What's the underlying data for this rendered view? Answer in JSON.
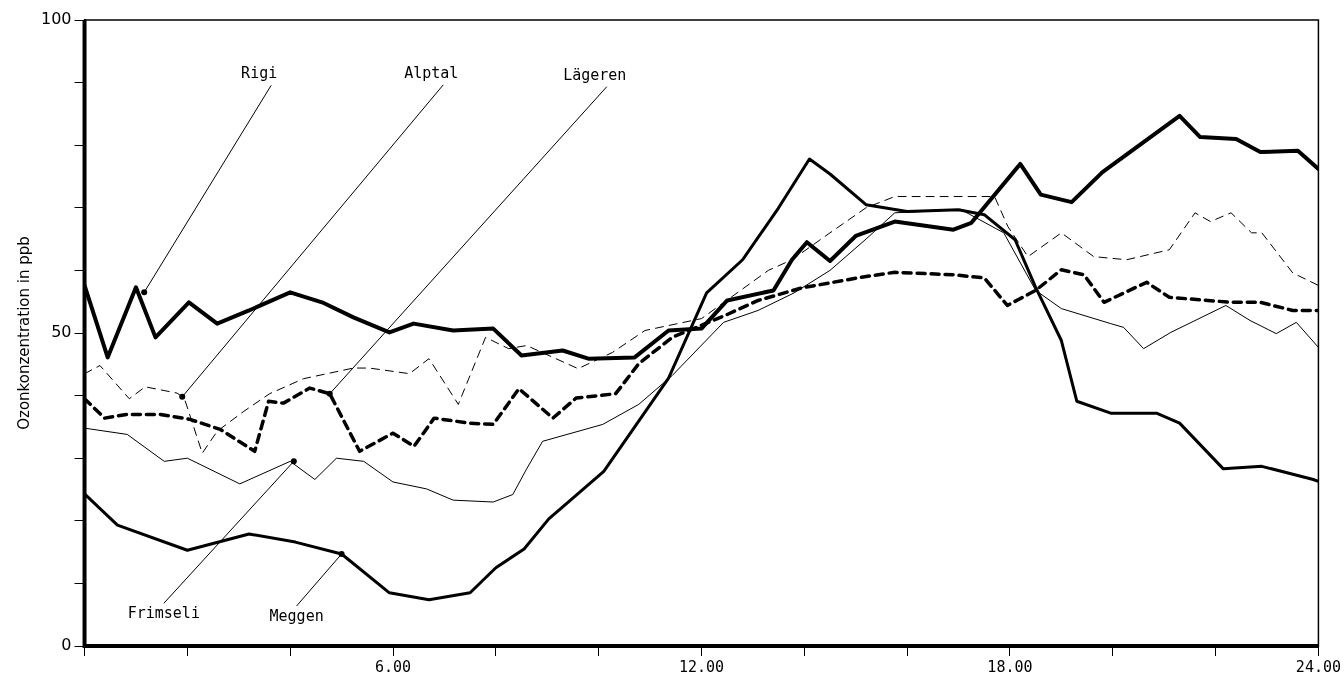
{
  "chart_data": {
    "type": "line",
    "ylabel": "Ozonkonzentration in ppb",
    "xlim": [
      0,
      24
    ],
    "ylim": [
      0,
      100
    ],
    "xticks": [
      {
        "value": 0,
        "label": null
      },
      {
        "value": 2,
        "label": null
      },
      {
        "value": 4,
        "label": null
      },
      {
        "value": 6,
        "label": "6.00"
      },
      {
        "value": 8,
        "label": null
      },
      {
        "value": 10,
        "label": null
      },
      {
        "value": 12,
        "label": "12.00"
      },
      {
        "value": 14,
        "label": null
      },
      {
        "value": 16,
        "label": null
      },
      {
        "value": 18,
        "label": "18.00"
      },
      {
        "value": 20,
        "label": null
      },
      {
        "value": 22,
        "label": null
      },
      {
        "value": 24,
        "label": "24.00"
      }
    ],
    "yticks": [
      0,
      {
        "value": 10,
        "label": null
      },
      {
        "value": 20,
        "label": null
      },
      {
        "value": 30,
        "label": null
      },
      {
        "value": 40,
        "label": null
      },
      50,
      {
        "value": 60,
        "label": null
      },
      {
        "value": 70,
        "label": null
      },
      {
        "value": 80,
        "label": null
      },
      {
        "value": 90,
        "label": null
      },
      100
    ],
    "grid": false,
    "legend": false,
    "marker": "none",
    "series": [
      {
        "color": "#000000",
        "line_style": "solid",
        "x": [
          0,
          0.45,
          1.0,
          1.38,
          2.03,
          2.58,
          3.2,
          4.0,
          4.65,
          5.23,
          5.93,
          6.4,
          7.17,
          7.95,
          8.5,
          9.3,
          9.8,
          10.7,
          11.36,
          12.0,
          12.5,
          13.4,
          13.76,
          14.05,
          14.5,
          15.0,
          15.76,
          16.9,
          17.25,
          18.2,
          18.6,
          19.2,
          19.8,
          21.3,
          21.7,
          22.4,
          22.87,
          23.6,
          24
        ],
        "values": [
          57.6,
          46.1,
          57.3,
          49.3,
          54.9,
          51.5,
          53.6,
          56.5,
          54.8,
          52.5,
          50.1,
          51.5,
          50.4,
          50.7,
          46.4,
          47.2,
          45.9,
          46.1,
          50.4,
          50.7,
          55.2,
          56.8,
          61.7,
          64.5,
          61.5,
          65.5,
          67.8,
          66.5,
          67.6,
          77,
          72.1,
          70.9,
          75.7,
          84.7,
          81.3,
          81,
          78.9,
          79.1,
          76.2
        ]
      },
      {
        "color": "#000000",
        "line_style": "dashed",
        "x": [
          0,
          0.3,
          0.87,
          1.18,
          1.8,
          1.94,
          2.29,
          2.58,
          3.1,
          3.6,
          4.26,
          5.23,
          5.54,
          6.32,
          6.7,
          7.27,
          7.8,
          8.25,
          8.6,
          9.6,
          10.27,
          10.9,
          12.0,
          13.3,
          13.76,
          14.5,
          15.2,
          15.76,
          17.7,
          17.96,
          18.35,
          19.0,
          19.63,
          20.27,
          21.1,
          21.6,
          21.9,
          22.3,
          22.7,
          22.9,
          23.5,
          24
        ],
        "values": [
          43.5,
          44.8,
          39.5,
          41.4,
          40.4,
          39.6,
          30.8,
          34.3,
          37.5,
          40.3,
          42.7,
          44.4,
          44.4,
          43.5,
          45.9,
          38.6,
          49.3,
          47.5,
          48,
          44.3,
          46.9,
          50.4,
          52.3,
          60,
          61.7,
          66,
          70,
          71.8,
          71.8,
          67,
          62.2,
          66,
          62.2,
          61.7,
          63.3,
          69.2,
          67.8,
          69.2,
          66,
          66,
          59.6,
          57.6
        ]
      },
      {
        "color": "#000000",
        "line_style": "dashed",
        "x": [
          0,
          0.39,
          0.83,
          1.47,
          2.05,
          2.64,
          3.31,
          3.58,
          3.87,
          4.38,
          4.77,
          5.35,
          6.0,
          6.41,
          6.8,
          7.48,
          7.95,
          8.45,
          9.11,
          9.56,
          10.33,
          10.78,
          11.43,
          12.46,
          13.1,
          13.95,
          15.1,
          15.76,
          16.9,
          17.5,
          17.95,
          18.5,
          19.0,
          19.44,
          19.83,
          20.66,
          21.1,
          22.3,
          22.87,
          23.5,
          24
        ],
        "values": [
          39.5,
          36.4,
          37,
          37,
          36.2,
          34.6,
          31.1,
          39.1,
          38.8,
          41.2,
          40.3,
          31.1,
          34,
          31.9,
          36.4,
          35.6,
          35.4,
          41.1,
          36.4,
          39.6,
          40.3,
          45.1,
          49.3,
          52.8,
          55.2,
          57.2,
          58.9,
          59.7,
          59.3,
          58.8,
          54.4,
          56.8,
          60.1,
          59.3,
          54.9,
          58.1,
          55.7,
          54.9,
          54.9,
          53.6,
          53.6
        ]
      },
      {
        "color": "#000000",
        "line_style": "solid",
        "x": [
          0,
          0.83,
          1.55,
          2.0,
          3.02,
          4.0,
          4.48,
          4.9,
          5.43,
          6.0,
          6.65,
          7.17,
          7.95,
          8.33,
          8.6,
          8.91,
          10.08,
          10.78,
          11.43,
          12.43,
          13.1,
          13.8,
          14.5,
          15.2,
          15.76,
          17.05,
          17.88,
          18.5,
          19.0,
          19.96,
          20.21,
          20.6,
          21.13,
          22.2,
          22.67,
          23.18,
          23.57,
          24
        ],
        "values": [
          34.8,
          33.8,
          29.5,
          30,
          25.9,
          29.5,
          26.6,
          30,
          29.5,
          26.2,
          25.1,
          23.3,
          23,
          24.2,
          28.3,
          32.7,
          35.4,
          38.6,
          43.2,
          51.7,
          53.6,
          56.4,
          60,
          65,
          69.2,
          69.7,
          66,
          56.8,
          53.9,
          51.5,
          50.9,
          47.5,
          50.1,
          54.4,
          52,
          49.9,
          51.7,
          47.7
        ]
      },
      {
        "color": "#000000",
        "line_style": "solid",
        "x": [
          0,
          0.64,
          2.0,
          3.2,
          4.1,
          5.0,
          5.93,
          6.7,
          7.5,
          8.0,
          8.55,
          9.03,
          10.1,
          11.36,
          12.1,
          12.8,
          13.5,
          14.1,
          14.5,
          15.2,
          16.0,
          17.0,
          17.5,
          18.1,
          18.5,
          19.0,
          19.3,
          19.96,
          20.85,
          21.3,
          22.15,
          22.9,
          23.9,
          24
        ],
        "values": [
          24.3,
          19.3,
          15.3,
          17.9,
          16.6,
          14.7,
          8.5,
          7.4,
          8.5,
          12.5,
          15.5,
          20.3,
          27.9,
          42.8,
          56.4,
          61.7,
          70,
          77.8,
          75.4,
          70.5,
          69.4,
          69.7,
          68.9,
          64.9,
          57.3,
          48.8,
          39.1,
          37.2,
          37.2,
          35.6,
          28.3,
          28.7,
          26.6,
          26.3
        ]
      }
    ],
    "annotations": [
      {
        "text": "Rigi",
        "x": 1.16,
        "y": 56.5
      },
      {
        "text": "Alptal",
        "x": 1.9,
        "y": 39.8
      },
      {
        "text": "Lägeren",
        "x": 4.77,
        "y": 40.3
      },
      {
        "text": "Frimseli",
        "x": 4.07,
        "y": 29.5
      },
      {
        "text": "Meggen",
        "x": 5.0,
        "y": 14.7
      }
    ]
  }
}
